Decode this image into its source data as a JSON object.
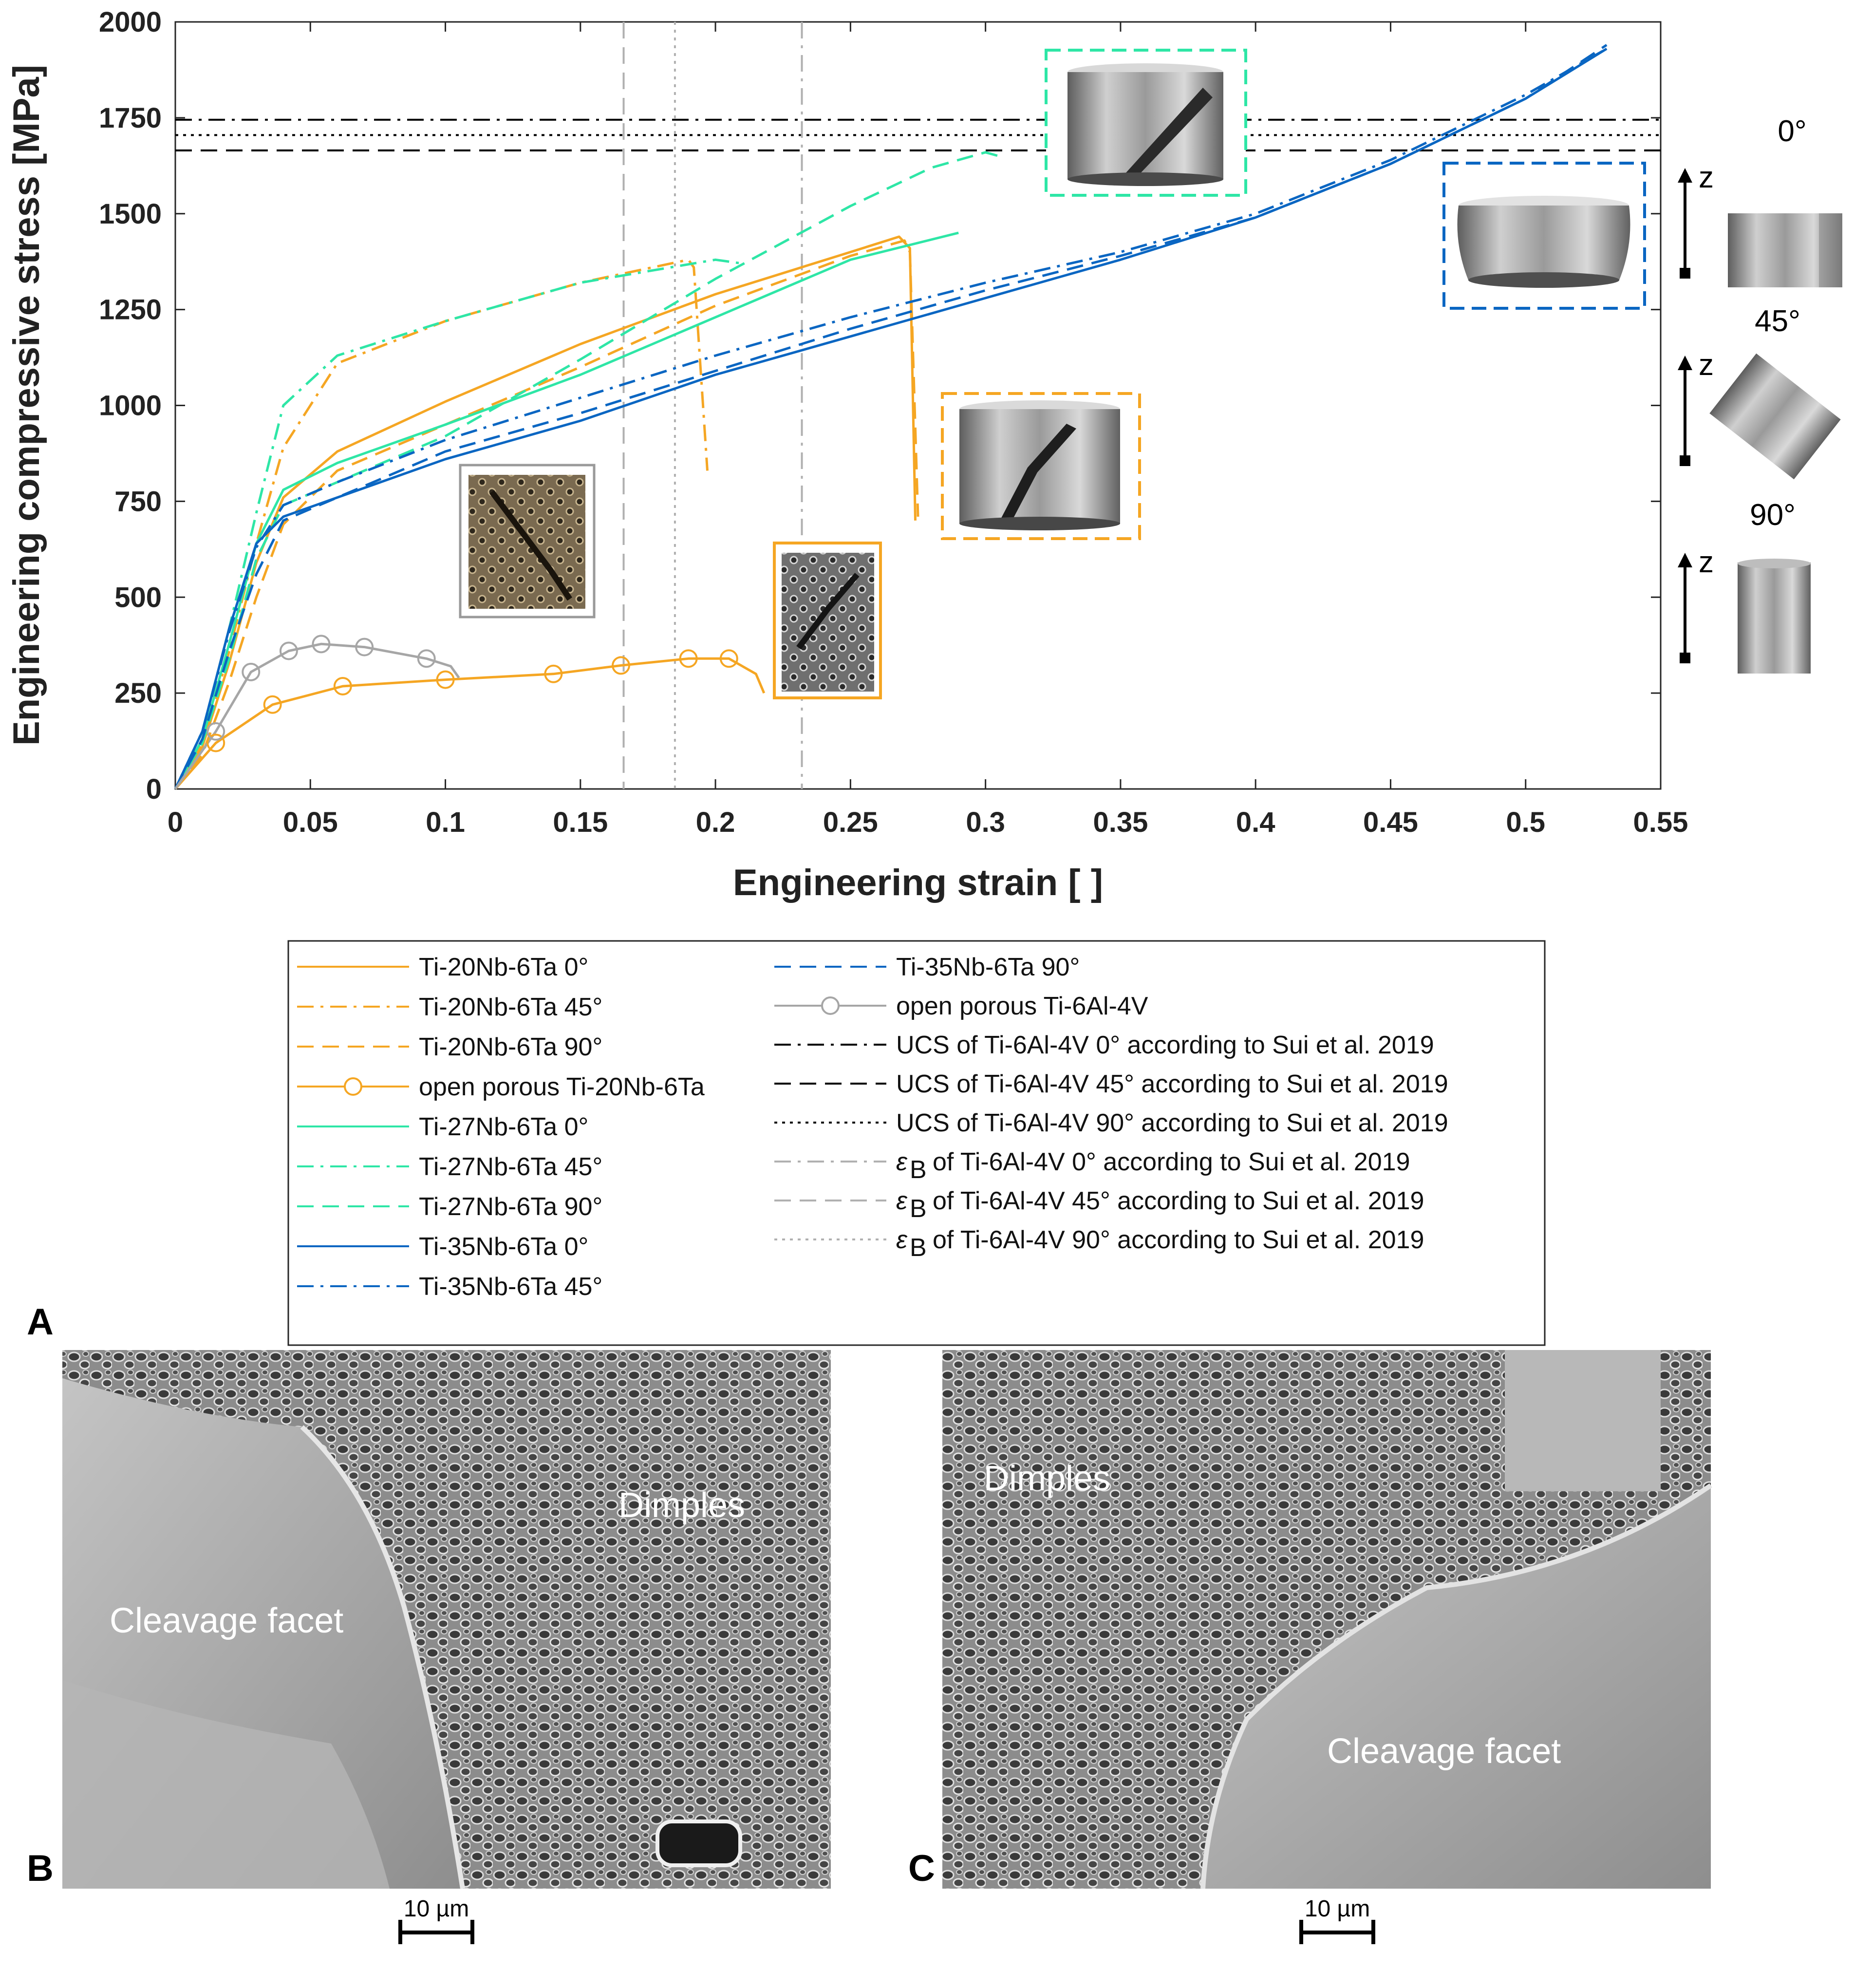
{
  "panels": {
    "a": "A",
    "b": "B",
    "c": "C"
  },
  "chart_data": {
    "type": "line",
    "xlabel": "Engineering strain [ ]",
    "ylabel": "Engineering compressive stress [MPa]",
    "xlim": [
      0,
      0.55
    ],
    "ylim": [
      0,
      2000
    ],
    "xticks": [
      "0",
      "0.05",
      "0.1",
      "0.15",
      "0.2",
      "0.25",
      "0.3",
      "0.35",
      "0.4",
      "0.45",
      "0.5",
      "0.55"
    ],
    "yticks": [
      "0",
      "250",
      "500",
      "750",
      "1000",
      "1250",
      "1500",
      "1750",
      "2000"
    ],
    "series": [
      {
        "name": "Ti-20Nb-6Ta 0°",
        "color": "#f5a623",
        "dash": "solid",
        "points": [
          [
            0,
            0
          ],
          [
            0.01,
            110
          ],
          [
            0.02,
            330
          ],
          [
            0.03,
            590
          ],
          [
            0.04,
            760
          ],
          [
            0.06,
            880
          ],
          [
            0.1,
            1010
          ],
          [
            0.15,
            1160
          ],
          [
            0.2,
            1290
          ],
          [
            0.25,
            1400
          ],
          [
            0.268,
            1440
          ],
          [
            0.272,
            1410
          ],
          [
            0.274,
            700
          ]
        ]
      },
      {
        "name": "Ti-20Nb-6Ta 45°",
        "color": "#f5a623",
        "dash": "dashdot",
        "points": [
          [
            0,
            0
          ],
          [
            0.01,
            120
          ],
          [
            0.02,
            360
          ],
          [
            0.03,
            640
          ],
          [
            0.04,
            890
          ],
          [
            0.06,
            1110
          ],
          [
            0.1,
            1220
          ],
          [
            0.15,
            1320
          ],
          [
            0.19,
            1380
          ],
          [
            0.192,
            1360
          ],
          [
            0.197,
            830
          ]
        ]
      },
      {
        "name": "Ti-20Nb-6Ta 90°",
        "color": "#f5a623",
        "dash": "dash",
        "points": [
          [
            0,
            0
          ],
          [
            0.01,
            90
          ],
          [
            0.02,
            280
          ],
          [
            0.03,
            500
          ],
          [
            0.04,
            690
          ],
          [
            0.06,
            830
          ],
          [
            0.1,
            950
          ],
          [
            0.15,
            1100
          ],
          [
            0.2,
            1260
          ],
          [
            0.25,
            1390
          ],
          [
            0.27,
            1430
          ],
          [
            0.272,
            1400
          ],
          [
            0.275,
            710
          ]
        ]
      },
      {
        "name": "open porous Ti-20Nb-6Ta",
        "color": "#f5a623",
        "dash": "solid",
        "markers": "circle",
        "points": [
          [
            0,
            0
          ],
          [
            0.015,
            120
          ],
          [
            0.036,
            220
          ],
          [
            0.062,
            268
          ],
          [
            0.1,
            285
          ],
          [
            0.14,
            300
          ],
          [
            0.165,
            322
          ],
          [
            0.19,
            340
          ],
          [
            0.205,
            340
          ],
          [
            0.215,
            300
          ],
          [
            0.218,
            250
          ]
        ]
      },
      {
        "name": "Ti-27Nb-6Ta 0°",
        "color": "#2ee6a6",
        "dash": "solid",
        "points": [
          [
            0,
            0
          ],
          [
            0.01,
            130
          ],
          [
            0.02,
            380
          ],
          [
            0.03,
            640
          ],
          [
            0.04,
            780
          ],
          [
            0.06,
            850
          ],
          [
            0.1,
            950
          ],
          [
            0.15,
            1080
          ],
          [
            0.2,
            1230
          ],
          [
            0.25,
            1380
          ],
          [
            0.29,
            1450
          ]
        ]
      },
      {
        "name": "Ti-27Nb-6Ta 45°",
        "color": "#2ee6a6",
        "dash": "dashdot",
        "points": [
          [
            0,
            0
          ],
          [
            0.01,
            150
          ],
          [
            0.02,
            420
          ],
          [
            0.03,
            720
          ],
          [
            0.04,
            1000
          ],
          [
            0.06,
            1130
          ],
          [
            0.1,
            1220
          ],
          [
            0.15,
            1320
          ],
          [
            0.2,
            1380
          ],
          [
            0.21,
            1370
          ]
        ]
      },
      {
        "name": "Ti-27Nb-6Ta 90°",
        "color": "#2ee6a6",
        "dash": "dash",
        "points": [
          [
            0,
            0
          ],
          [
            0.01,
            120
          ],
          [
            0.02,
            340
          ],
          [
            0.03,
            600
          ],
          [
            0.04,
            740
          ],
          [
            0.06,
            800
          ],
          [
            0.1,
            920
          ],
          [
            0.15,
            1120
          ],
          [
            0.2,
            1330
          ],
          [
            0.25,
            1520
          ],
          [
            0.28,
            1620
          ],
          [
            0.3,
            1660
          ],
          [
            0.305,
            1650
          ]
        ]
      },
      {
        "name": "Ti-35Nb-6Ta 0°",
        "color": "#0a66c2",
        "dash": "solid",
        "points": [
          [
            0,
            0
          ],
          [
            0.01,
            150
          ],
          [
            0.02,
            420
          ],
          [
            0.03,
            640
          ],
          [
            0.04,
            710
          ],
          [
            0.06,
            760
          ],
          [
            0.1,
            860
          ],
          [
            0.15,
            960
          ],
          [
            0.2,
            1080
          ],
          [
            0.25,
            1180
          ],
          [
            0.3,
            1280
          ],
          [
            0.35,
            1380
          ],
          [
            0.4,
            1490
          ],
          [
            0.45,
            1630
          ],
          [
            0.5,
            1800
          ],
          [
            0.53,
            1930
          ]
        ]
      },
      {
        "name": "Ti-35Nb-6Ta 45°",
        "color": "#0a66c2",
        "dash": "dashdot",
        "points": [
          [
            0,
            0
          ],
          [
            0.01,
            150
          ],
          [
            0.02,
            410
          ],
          [
            0.03,
            630
          ],
          [
            0.04,
            740
          ],
          [
            0.06,
            800
          ],
          [
            0.1,
            910
          ],
          [
            0.15,
            1020
          ],
          [
            0.2,
            1130
          ],
          [
            0.25,
            1230
          ],
          [
            0.3,
            1320
          ],
          [
            0.35,
            1400
          ],
          [
            0.4,
            1500
          ],
          [
            0.45,
            1640
          ],
          [
            0.5,
            1810
          ],
          [
            0.53,
            1930
          ]
        ]
      },
      {
        "name": "Ti-35Nb-6Ta 90°",
        "color": "#0a66c2",
        "dash": "dash",
        "points": [
          [
            0,
            0
          ],
          [
            0.01,
            130
          ],
          [
            0.02,
            360
          ],
          [
            0.03,
            560
          ],
          [
            0.04,
            700
          ],
          [
            0.06,
            760
          ],
          [
            0.1,
            880
          ],
          [
            0.15,
            980
          ],
          [
            0.2,
            1090
          ],
          [
            0.25,
            1200
          ],
          [
            0.3,
            1300
          ],
          [
            0.35,
            1390
          ],
          [
            0.4,
            1490
          ],
          [
            0.45,
            1630
          ],
          [
            0.5,
            1800
          ],
          [
            0.53,
            1940
          ]
        ]
      },
      {
        "name": "open porous Ti-6Al-4V",
        "color": "#a6a6a6",
        "dash": "solid",
        "markers": "circle",
        "points": [
          [
            0,
            0
          ],
          [
            0.015,
            150
          ],
          [
            0.028,
            305
          ],
          [
            0.042,
            360
          ],
          [
            0.054,
            378
          ],
          [
            0.07,
            370
          ],
          [
            0.093,
            340
          ],
          [
            0.102,
            320
          ],
          [
            0.105,
            290
          ]
        ]
      }
    ],
    "reference_lines": [
      {
        "name": "UCS of Ti-6Al-4V 0° according to Sui et al. 2019",
        "orientation": "horizontal",
        "value": 1745,
        "color": "#000000",
        "dash": "dashdot"
      },
      {
        "name": "UCS of Ti-6Al-4V 45° according to Sui et al. 2019",
        "orientation": "horizontal",
        "value": 1665,
        "color": "#000000",
        "dash": "dash"
      },
      {
        "name": "UCS of Ti-6Al-4V 90° according to Sui et al. 2019",
        "orientation": "horizontal",
        "value": 1705,
        "color": "#000000",
        "dash": "dot"
      },
      {
        "name": "of Ti-6Al-4V 0° according to Sui et al. 2019",
        "symbol": "ε",
        "sub": "B",
        "orientation": "vertical",
        "value": 0.232,
        "color": "#b0b0b0",
        "dash": "dashdot"
      },
      {
        "name": "of Ti-6Al-4V 45° according to Sui et al. 2019",
        "symbol": "ε",
        "sub": "B",
        "orientation": "vertical",
        "value": 0.166,
        "color": "#b0b0b0",
        "dash": "dash"
      },
      {
        "name": "of Ti-6Al-4V 90° according to Sui et al. 2019",
        "symbol": "ε",
        "sub": "B",
        "orientation": "vertical",
        "value": 0.185,
        "color": "#b0b0b0",
        "dash": "dot"
      }
    ],
    "legend_order": [
      "Ti-20Nb-6Ta 0°",
      "Ti-20Nb-6Ta 45°",
      "Ti-20Nb-6Ta 90°",
      "open porous Ti-20Nb-6Ta",
      "Ti-27Nb-6Ta 0°",
      "Ti-27Nb-6Ta 45°",
      "Ti-27Nb-6Ta 90°",
      "Ti-35Nb-6Ta 0°",
      "Ti-35Nb-6Ta 45°",
      "Ti-35Nb-6Ta 90°",
      "open porous Ti-6Al-4V",
      "UCS of Ti-6Al-4V 0° according to Sui et al. 2019",
      "UCS of Ti-6Al-4V 45° according to Sui et al. 2019",
      "UCS of Ti-6Al-4V 90° according to Sui et al. 2019",
      "of Ti-6Al-4V 0° according to Sui et al. 2019",
      "of Ti-6Al-4V 45° according to Sui et al. 2019",
      "of Ti-6Al-4V 90° according to Sui et al. 2019"
    ],
    "legend_position": "below"
  },
  "orientation_key": {
    "axis_label": "z",
    "angles": [
      "0°",
      "45°",
      "90°"
    ]
  },
  "sem": {
    "b": {
      "label_dimples": "Dimples",
      "label_facet": "Cleavage facet",
      "scale": "10 µm"
    },
    "c": {
      "label_dimples": "Dimples",
      "label_facet": "Cleavage facet",
      "scale": "10 µm"
    }
  }
}
